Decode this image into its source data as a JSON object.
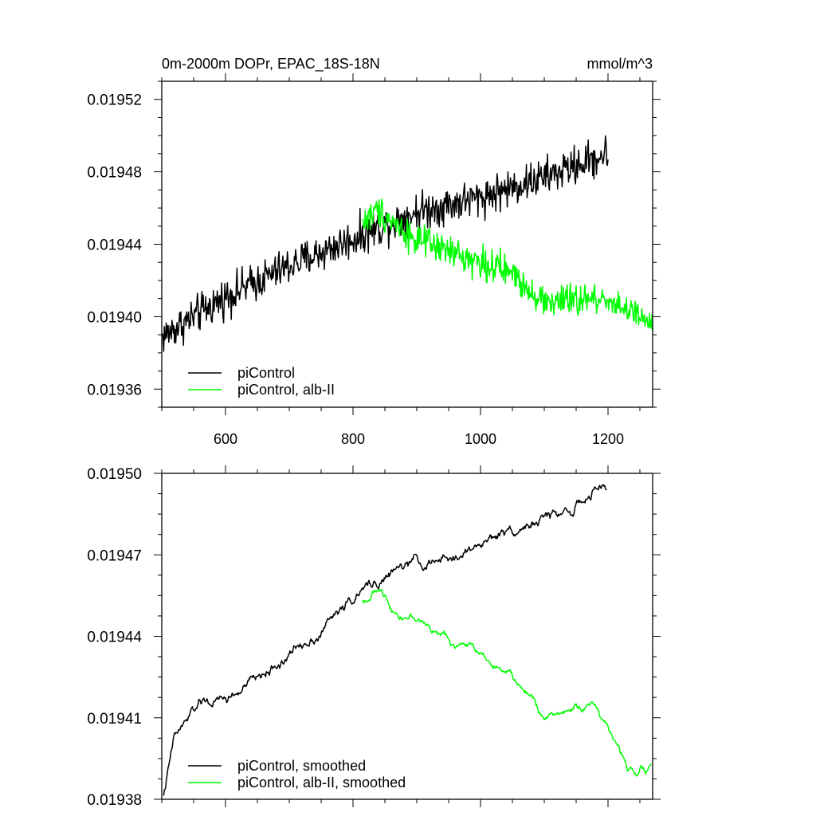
{
  "chart_data": [
    {
      "type": "line",
      "title": "0m-2000m DOPr, EPAC_18S-18N",
      "units": "mmol/m^3",
      "xlim": [
        500,
        1270
      ],
      "ylim": [
        0.01935,
        0.01953
      ],
      "x_ticks": [
        600,
        800,
        1000,
        1200
      ],
      "x_tick_labels": [
        "600",
        "800",
        "1000",
        "1200"
      ],
      "y_ticks": [
        0.01936,
        0.0194,
        0.01944,
        0.01948,
        0.01952
      ],
      "y_tick_labels": [
        "0.01936",
        "0.01940",
        "0.01944",
        "0.01948",
        "0.01952"
      ],
      "legend_position": "bottom-left",
      "series": [
        {
          "name": "piControl",
          "color": "#000000",
          "x_start": 501,
          "x_end": 1200,
          "step": 1,
          "trend_x": [
            501,
            600,
            700,
            800,
            900,
            1000,
            1100,
            1200
          ],
          "trend_y": [
            0.019389,
            0.019411,
            0.019428,
            0.019443,
            0.019458,
            0.019466,
            0.019477,
            0.01949
          ],
          "noise": 6.5e-06
        },
        {
          "name": "piControl, alb-II",
          "color": "#00ff00",
          "x_start": 815,
          "x_end": 1270,
          "step": 1,
          "trend_x": [
            815,
            840,
            900,
            1000,
            1050,
            1100,
            1200,
            1270
          ],
          "trend_y": [
            0.019452,
            0.019459,
            0.019442,
            0.01943,
            0.019424,
            0.019408,
            0.01941,
            0.019395
          ],
          "noise": 5.5e-06
        }
      ]
    },
    {
      "type": "line",
      "title": "",
      "xlim": [
        500,
        1270
      ],
      "ylim": [
        0.01938,
        0.0195
      ],
      "x_ticks": [
        600,
        800,
        1000,
        1200
      ],
      "x_tick_labels": [],
      "y_ticks": [
        0.01938,
        0.01941,
        0.01944,
        0.01947,
        0.0195
      ],
      "y_tick_labels": [
        "0.01938",
        "0.01941",
        "0.01944",
        "0.01947",
        "0.01950"
      ],
      "legend_position": "bottom-left",
      "series": [
        {
          "name": "piControl, smoothed",
          "color": "#000000",
          "x_start": 503,
          "x_end": 1198,
          "step": 1,
          "trend_x": [
            503,
            520,
            560,
            600,
            650,
            700,
            750,
            800,
            850,
            900,
            950,
            1000,
            1050,
            1100,
            1150,
            1198
          ],
          "trend_y": [
            0.019382,
            0.019402,
            0.019415,
            0.019416,
            0.019424,
            0.019433,
            0.019443,
            0.019454,
            0.019462,
            0.019467,
            0.019467,
            0.019474,
            0.01948,
            0.019483,
            0.019488,
            0.019495
          ],
          "noise": 1.6e-06
        },
        {
          "name": "piControl, alb-II, smoothed",
          "color": "#00ff00",
          "x_start": 815,
          "x_end": 1268,
          "step": 1,
          "trend_x": [
            815,
            840,
            870,
            900,
            950,
            1000,
            1040,
            1080,
            1100,
            1150,
            1180,
            1200,
            1230,
            1268
          ],
          "trend_y": [
            0.019453,
            0.019457,
            0.019449,
            0.019447,
            0.019438,
            0.019435,
            0.019427,
            0.019417,
            0.01941,
            0.019414,
            0.019415,
            0.019407,
            0.019391,
            0.019393
          ],
          "noise": 1.2e-06
        }
      ]
    }
  ]
}
